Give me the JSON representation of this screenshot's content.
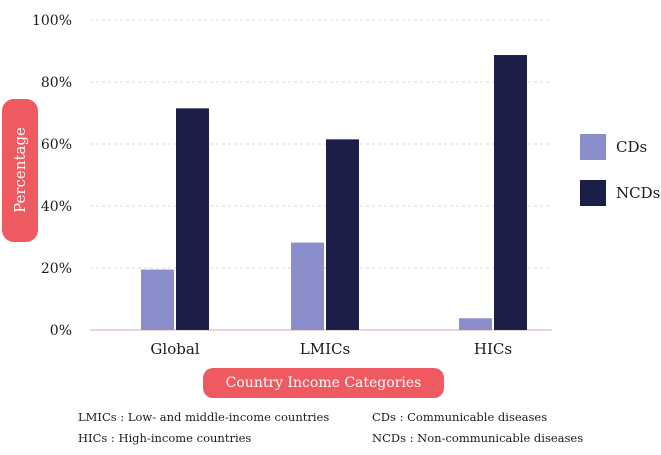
{
  "chart_data": {
    "type": "bar",
    "categories": [
      "Global",
      "LMICs",
      "HICs"
    ],
    "series": [
      {
        "name": "CDs",
        "values": [
          19.5,
          28.2,
          3.8
        ],
        "color": "#8a8fcb"
      },
      {
        "name": "NCDs",
        "values": [
          71.5,
          61.5,
          88.7
        ],
        "color": "#1c1e4a"
      }
    ],
    "ylabel": "Percentage",
    "xlabel": "Country Income  Categories",
    "ylim": [
      0,
      100
    ],
    "yticks": [
      "0%",
      "20%",
      "40%",
      "60%",
      "80%",
      "100%"
    ],
    "grid": true,
    "legend_position": "right"
  },
  "footnotes": [
    {
      "abbr": "LMICs :",
      "text": "Low- and middle-income countries"
    },
    {
      "abbr": "HICs   :",
      "text": "High-income countries"
    },
    {
      "abbr": "CDs    :",
      "text": "Communicable diseases"
    },
    {
      "abbr": "NCDs  :",
      "text": "Non-communicable diseases"
    }
  ],
  "colors": {
    "accent": "#ee5a60",
    "grid": "#d9d9d9",
    "axis": "#e7c7c9"
  }
}
